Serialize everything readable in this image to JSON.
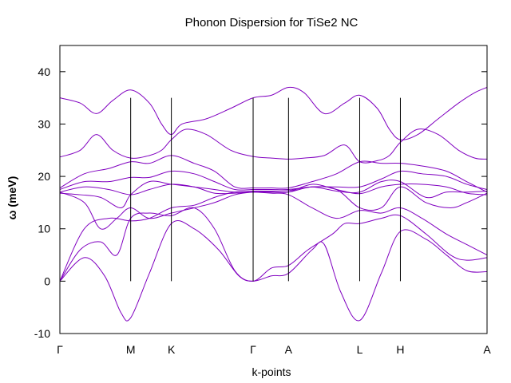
{
  "chart_data": {
    "type": "line",
    "title": "Phonon Dispersion for TiSe2 NC",
    "xlabel": "k-points",
    "ylabel": "ω (meV)",
    "ylim": [
      -10,
      45
    ],
    "yticks": [
      -10,
      0,
      10,
      20,
      30,
      40
    ],
    "xlim": [
      0,
      10.5
    ],
    "high_symmetry_points": [
      {
        "label": "Γ",
        "x": 0
      },
      {
        "label": "M",
        "x": 1.74
      },
      {
        "label": "K",
        "x": 2.74
      },
      {
        "label": "Γ",
        "x": 4.75
      },
      {
        "label": "A",
        "x": 5.62
      },
      {
        "label": "L",
        "x": 7.37
      },
      {
        "label": "H",
        "x": 8.37
      },
      {
        "label": "A",
        "x": 10.5
      }
    ],
    "series_color": "#8000c0",
    "grid": false,
    "series": [
      {
        "x": [
          0,
          0.6,
          1.1,
          1.5,
          1.74,
          2.2,
          2.74,
          3.3,
          3.9,
          4.4,
          4.75,
          5.2,
          5.62,
          6.2,
          6.5,
          6.9,
          7.37,
          7.9,
          8.37,
          9.0,
          9.5,
          10.0,
          10.5
        ],
        "y": [
          0,
          4.5,
          1.0,
          -6,
          -7,
          1.5,
          11,
          10,
          6,
          1,
          0,
          1,
          1.5,
          6,
          7,
          -2,
          -7.5,
          1.5,
          9.5,
          8,
          5,
          2,
          1.8
        ]
      },
      {
        "x": [
          0,
          0.5,
          1.0,
          1.4,
          1.74,
          2.2,
          2.74,
          3.3,
          3.8,
          4.3,
          4.75,
          5.2,
          5.62,
          6.1,
          6.7,
          7.0,
          7.37,
          7.9,
          8.37,
          9.0,
          9.6,
          10.0,
          10.5
        ],
        "y": [
          0,
          6,
          7.5,
          5,
          12,
          13,
          12.5,
          14,
          10,
          2,
          0,
          2.5,
          3,
          6,
          9,
          11,
          11,
          12,
          12.5,
          9,
          5,
          4,
          4.5
        ]
      },
      {
        "x": [
          0,
          0.6,
          1.2,
          1.74,
          2.2,
          2.74,
          3.3,
          3.8,
          4.3,
          4.75,
          5.2,
          5.62,
          6.2,
          6.8,
          7.37,
          7.9,
          8.37,
          8.9,
          9.5,
          10.0,
          10.5
        ],
        "y": [
          0,
          10,
          12,
          11.5,
          12,
          14,
          14.5,
          16,
          17,
          17,
          16.8,
          16.5,
          14,
          12,
          13.5,
          13,
          14,
          12,
          9,
          7,
          5
        ]
      },
      {
        "x": [
          0,
          0.6,
          1.0,
          1.4,
          1.74,
          2.2,
          2.74,
          3.3,
          3.8,
          4.3,
          4.75,
          5.2,
          5.62,
          6.2,
          6.8,
          7.37,
          7.9,
          8.37,
          9.0,
          9.6,
          10.0,
          10.5
        ],
        "y": [
          17,
          15,
          10,
          12,
          14,
          12,
          13,
          14,
          15,
          16.5,
          17,
          17,
          17,
          18,
          17.5,
          14,
          14,
          18,
          15,
          14,
          15,
          16.8
        ]
      },
      {
        "x": [
          0,
          0.5,
          1.0,
          1.5,
          1.74,
          2.2,
          2.74,
          3.3,
          3.8,
          4.3,
          4.75,
          5.2,
          5.62,
          6.2,
          6.8,
          7.37,
          7.9,
          8.37,
          9.0,
          9.5,
          10.0,
          10.5
        ],
        "y": [
          16.8,
          16.5,
          16,
          14,
          16.5,
          19,
          18.5,
          18,
          17.5,
          17,
          17.2,
          17.2,
          17.3,
          18,
          17.2,
          17,
          19,
          19,
          16,
          17,
          17,
          17.2
        ]
      },
      {
        "x": [
          0,
          0.6,
          1.2,
          1.74,
          2.2,
          2.74,
          3.3,
          3.8,
          4.3,
          4.75,
          5.2,
          5.62,
          6.2,
          6.8,
          7.37,
          7.9,
          8.37,
          8.9,
          9.5,
          10.0,
          10.5
        ],
        "y": [
          17,
          18,
          17.5,
          16.5,
          17.5,
          18.5,
          18,
          16.8,
          16.8,
          17,
          17,
          17,
          18.5,
          17.5,
          16.7,
          18,
          18.5,
          18.5,
          18,
          16.8,
          16.5
        ]
      },
      {
        "x": [
          0,
          0.6,
          1.2,
          1.74,
          2.2,
          2.74,
          3.3,
          3.8,
          4.3,
          4.75,
          5.2,
          5.62,
          6.2,
          6.8,
          7.37,
          7.9,
          8.37,
          8.9,
          9.5,
          10.0,
          10.5
        ],
        "y": [
          17.5,
          19,
          19,
          19.8,
          19.8,
          21,
          20.5,
          19,
          17.5,
          17.5,
          17.5,
          17.5,
          18,
          18,
          18,
          19.5,
          21,
          20.5,
          20,
          18.5,
          17.5
        ]
      },
      {
        "x": [
          0,
          0.6,
          1.2,
          1.74,
          2.2,
          2.74,
          3.3,
          3.8,
          4.3,
          4.75,
          5.2,
          5.62,
          6.2,
          6.8,
          7.37,
          7.9,
          8.37,
          8.9,
          9.5,
          10.0,
          10.5
        ],
        "y": [
          17.8,
          20.5,
          21.5,
          22.8,
          22.5,
          24,
          22.5,
          21,
          18,
          17.8,
          17.8,
          17.8,
          19,
          20.5,
          22.8,
          22.5,
          22.5,
          22,
          21,
          19,
          17
        ]
      },
      {
        "x": [
          0,
          0.5,
          0.9,
          1.3,
          1.74,
          2.2,
          2.5,
          2.74,
          3.1,
          3.6,
          4.2,
          4.75,
          5.2,
          5.62,
          6.0,
          6.5,
          7.0,
          7.37,
          7.8,
          8.1,
          8.37,
          8.8,
          9.3,
          9.8,
          10.2,
          10.5
        ],
        "y": [
          23.7,
          25,
          28,
          25,
          23.5,
          24,
          25,
          27,
          29,
          28,
          25,
          23.8,
          23.5,
          23.3,
          23.5,
          24,
          26,
          22.8,
          23,
          24,
          26.5,
          29,
          28,
          25,
          23.5,
          23.3
        ]
      },
      {
        "x": [
          0,
          0.5,
          0.9,
          1.3,
          1.74,
          2.2,
          2.5,
          2.74,
          3.0,
          3.6,
          4.2,
          4.75,
          5.2,
          5.62,
          6.0,
          6.5,
          7.0,
          7.37,
          7.8,
          8.1,
          8.37,
          8.8,
          9.3,
          9.8,
          10.2,
          10.5
        ],
        "y": [
          35,
          34,
          32,
          34.5,
          36.5,
          34,
          30,
          28,
          30,
          31,
          33,
          35,
          35.5,
          37,
          36,
          32,
          34,
          35.5,
          33,
          29,
          27,
          28,
          31,
          34,
          36,
          37
        ]
      }
    ]
  }
}
